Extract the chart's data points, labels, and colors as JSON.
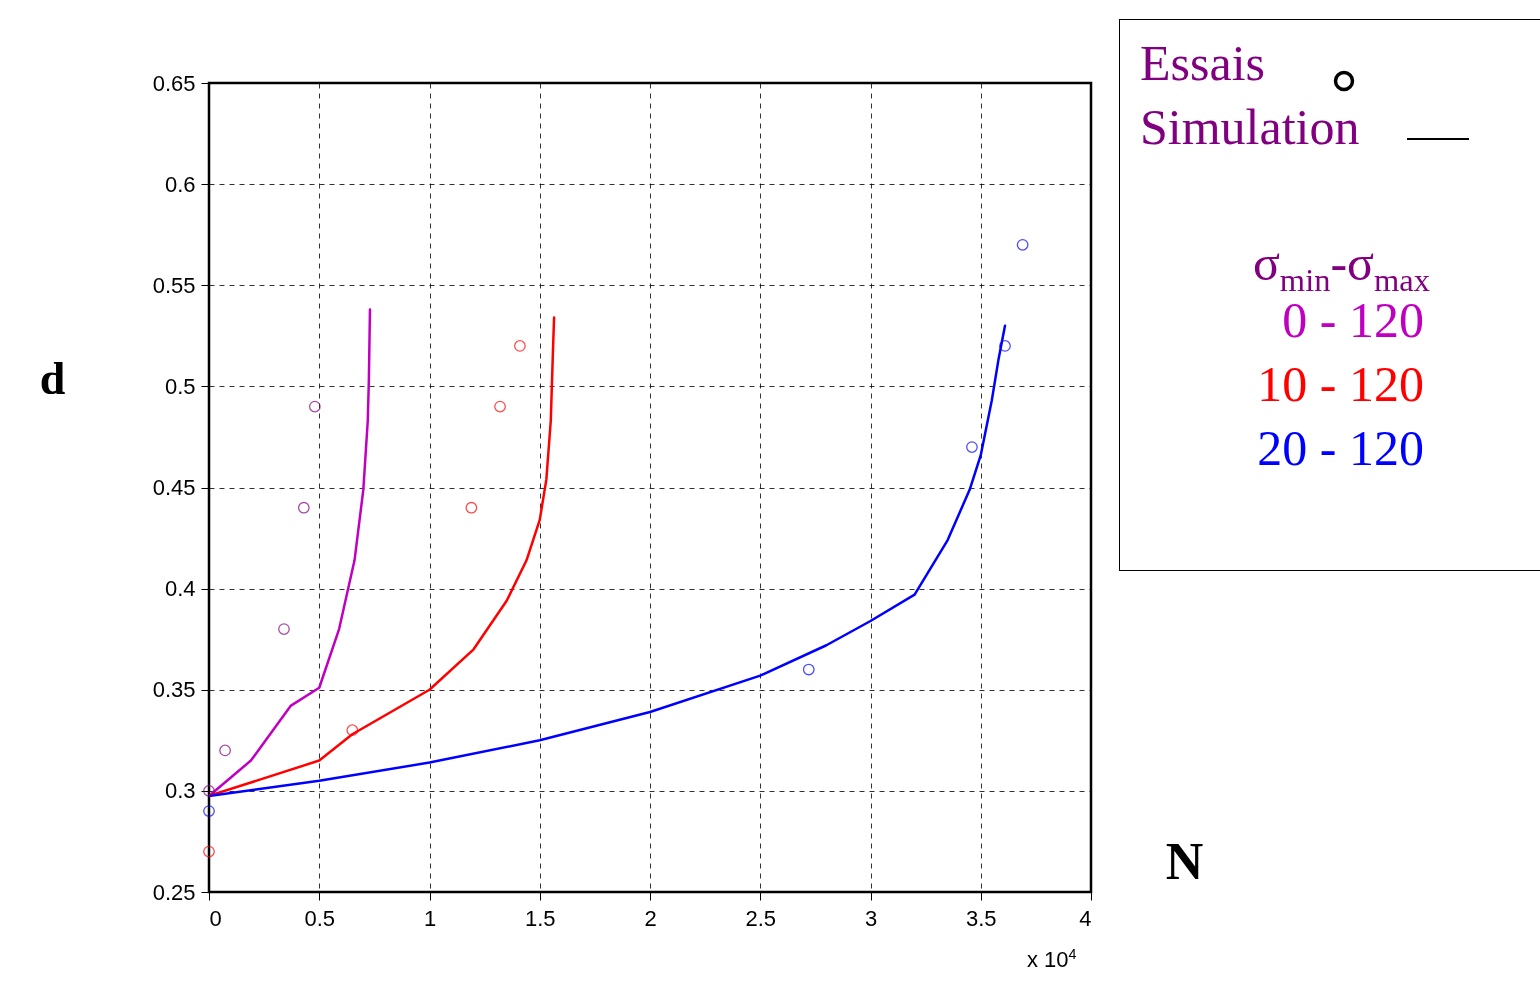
{
  "chart_data": {
    "type": "line",
    "xlabel": "N",
    "ylabel": "d",
    "legend_title": "σ$_{min}$-σ$_{max}$",
    "legend": "right",
    "annotations": [
      "Essais",
      "Simulation",
      "x 10$^{4}$"
    ],
    "xlim": [
      0,
      4
    ],
    "xticks": [
      0,
      0.5,
      1,
      1.5,
      2,
      2.5,
      3,
      3.5,
      4
    ],
    "ylim": [
      0.25,
      0.65
    ],
    "yticks": [
      0.25,
      0.3,
      0.35,
      0.4,
      0.45,
      0.5,
      0.55,
      0.6,
      0.65
    ],
    "grid": true,
    "line_style": "solid",
    "series": [
      {
        "name": "0 - 120",
        "color": "#c000c0",
        "x": [
          0,
          0.19,
          0.37,
          0.5,
          0.59,
          0.66,
          0.7,
          0.72,
          0.725,
          0.73
        ],
        "values": [
          0.2975,
          0.315,
          0.342,
          0.351,
          0.38,
          0.414,
          0.449,
          0.483,
          0.503,
          0.538
        ]
      },
      {
        "name": "10 - 120",
        "color": "#ff0000",
        "x": [
          0,
          0.5,
          0.65,
          1.0,
          1.2,
          1.35,
          1.44,
          1.5,
          1.53,
          1.55,
          1.56,
          1.565
        ],
        "values": [
          0.2975,
          0.315,
          0.328,
          0.35,
          0.37,
          0.394,
          0.414,
          0.434,
          0.454,
          0.483,
          0.518,
          0.534
        ]
      },
      {
        "name": "20 - 120",
        "color": "#0000ff",
        "x": [
          0,
          0.5,
          1,
          1.5,
          2,
          2.5,
          2.8,
          3,
          3.2,
          3.35,
          3.45,
          3.5,
          3.55,
          3.58,
          3.61
        ],
        "values": [
          0.2975,
          0.305,
          0.314,
          0.325,
          0.339,
          0.357,
          0.372,
          0.384,
          0.397,
          0.424,
          0.449,
          0.466,
          0.493,
          0.513,
          0.53
        ]
      },
      {
        "type": "scatter",
        "marker": "circle",
        "color": "#800080",
        "x": [
          0,
          0.073,
          0.34,
          0.43,
          0.48
        ],
        "values": [
          0.3,
          0.32,
          0.38,
          0.44,
          0.49
        ]
      },
      {
        "type": "scatter",
        "marker": "circle",
        "color": "#ff0000",
        "x": [
          0,
          0.65,
          1.19,
          1.32,
          1.41
        ],
        "values": [
          0.27,
          0.33,
          0.44,
          0.49,
          0.52
        ]
      },
      {
        "type": "scatter",
        "marker": "circle",
        "color": "#0000ff",
        "x": [
          0,
          2.72,
          3.46,
          3.61,
          3.69
        ],
        "values": [
          0.29,
          0.36,
          0.47,
          0.52,
          0.57
        ]
      }
    ]
  }
}
